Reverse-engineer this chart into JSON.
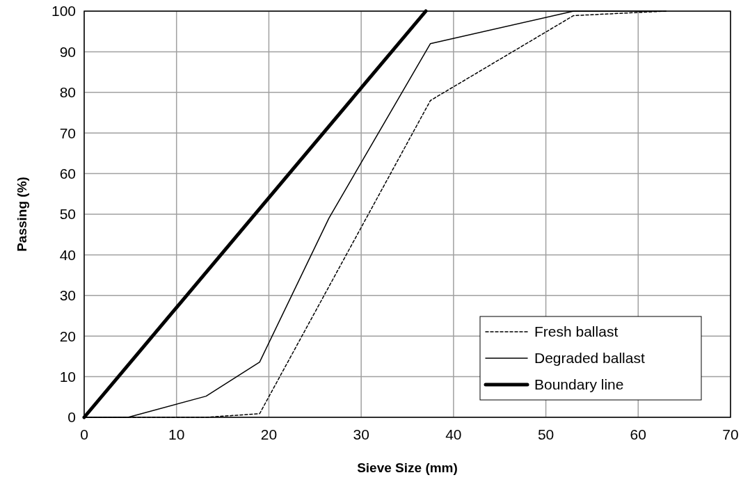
{
  "chart_data": {
    "type": "line",
    "xlabel": "Sieve Size (mm)",
    "ylabel": "Passing (%)",
    "xlim": [
      0,
      70
    ],
    "ylim": [
      0,
      100
    ],
    "xticks": [
      0,
      10,
      20,
      30,
      40,
      50,
      60,
      70
    ],
    "yticks": [
      0,
      10,
      20,
      30,
      40,
      50,
      60,
      70,
      80,
      90,
      100
    ],
    "grid": true,
    "legend": "bottom right",
    "series": [
      {
        "name": "Fresh ballast",
        "color": "#000000",
        "line_style": "dashed",
        "x": [
          0,
          4.75,
          13.2,
          19,
          37.5,
          53,
          63
        ],
        "values": [
          0,
          0,
          0,
          0.9,
          78,
          98.9,
          100
        ]
      },
      {
        "name": "Degraded ballast",
        "color": "#000000",
        "line_style": "solid",
        "x": [
          0,
          4.75,
          13.2,
          19,
          26.5,
          37.5,
          53,
          63
        ],
        "values": [
          0,
          0,
          5.2,
          13.6,
          49,
          92,
          100,
          100
        ]
      },
      {
        "name": "Boundary line",
        "color": "#000000",
        "line_style": "solid",
        "x": [
          0,
          37
        ],
        "values": [
          0,
          100
        ]
      }
    ]
  }
}
